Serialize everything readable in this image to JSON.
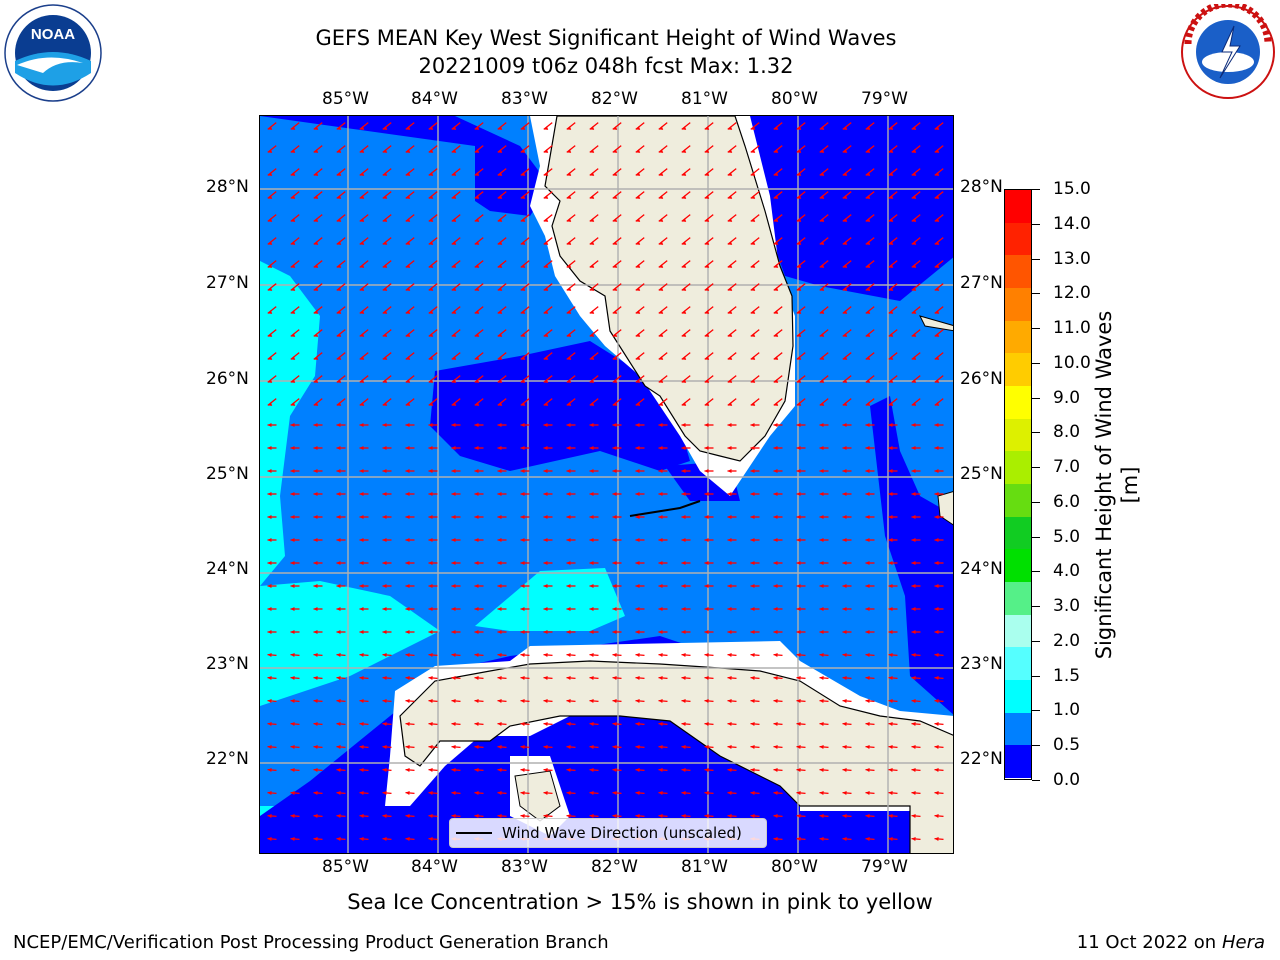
{
  "header": {
    "title_line1": "GEFS MEAN Key West Significant Height of Wind Waves",
    "title_line2": "20221009 t06z 048h fcst   Max: 1.32"
  },
  "map": {
    "lon_labels": [
      "85°W",
      "84°W",
      "83°W",
      "82°W",
      "81°W",
      "80°W",
      "79°W"
    ],
    "lat_labels": [
      "28°N",
      "27°N",
      "26°N",
      "25°N",
      "24°N",
      "23°N",
      "22°N"
    ],
    "legend_label": "Wind Wave Direction (unscaled)",
    "land_color": "#efeddd",
    "arrow_color": "#ff0000"
  },
  "colorbar": {
    "label": "Significant Height of Wind Waves [m]",
    "ticks": [
      "15.0",
      "14.0",
      "13.0",
      "12.0",
      "11.0",
      "10.0",
      "9.0",
      "8.0",
      "7.0",
      "6.0",
      "5.0",
      "4.0",
      "3.0",
      "2.0",
      "1.5",
      "1.0",
      "0.5",
      "0.0"
    ],
    "colors": [
      "#ff0000",
      "#ff2200",
      "#ff5500",
      "#ff8000",
      "#ffaa00",
      "#ffcc00",
      "#ffff00",
      "#ddf000",
      "#aaee00",
      "#66dd11",
      "#11cc22",
      "#00e000",
      "#55f088",
      "#aaffee",
      "#55ffff",
      "#00ffff",
      "#0080ff",
      "#0000ff"
    ]
  },
  "footer": {
    "ice_note": "Sea Ice Concentration > 15% is shown in pink to yellow",
    "left": "NCEP/EMC/Verification Post Processing Product Generation Branch",
    "right_date": "11 Oct 2022 on ",
    "right_host": "Hera"
  },
  "logos": {
    "noaa_text": "NOAA",
    "noaa_ring": "NATIONAL OCEANIC AND ATMOSPHERIC ADMINISTRATION · U.S. DEPARTMENT OF COMMERCE",
    "nws_ring": "NATIONAL WEATHER SERVICE"
  }
}
